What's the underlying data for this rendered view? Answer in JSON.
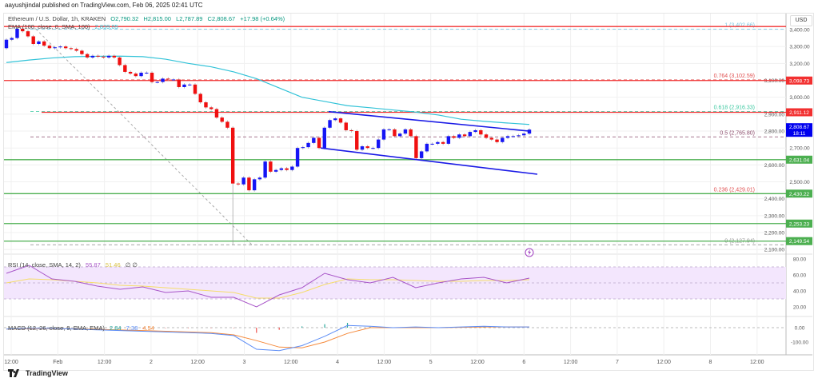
{
  "header": {
    "published": "aayushjindal published on TradingView.com, Feb 06, 2025 02:41 UTC",
    "symbol": "Ethereum / U.S. Dollar, 1h, KRAKEN",
    "open": "O2,790.32",
    "high": "H2,815.00",
    "low": "L2,787.89",
    "close": "C2,808.67",
    "change": "+17.98 (+0.64%)",
    "ema_label": "EMA (100, close, 0, SMA, 100)",
    "ema_value": "2,839.05"
  },
  "currency": "USD",
  "footer": {
    "brand": "TradingView"
  },
  "colors": {
    "up": "#1515f5",
    "down": "#f01010",
    "ema": "#33c3d8",
    "resistance": "#f23030",
    "support": "#4caf50",
    "channel": "#1a1ae6",
    "rsi": "#a855c8",
    "rsi_sma": "#f5dd6a",
    "macd": "#5b8cf5",
    "signal": "#f58a3c",
    "price_badge": "#0000ee"
  },
  "chart_data": {
    "type": "candlestick",
    "title": "Ethereum / U.S. Dollar, 1h, KRAKEN",
    "ylim": [
      2050,
      3450
    ],
    "y_ticks": [
      "3,400.00",
      "3,300.00",
      "3,200.00",
      "3,100.00",
      "3,000.00",
      "2,900.00",
      "2,800.00",
      "2,700.00",
      "2,600.00",
      "2,500.00",
      "2,400.00",
      "2,300.00",
      "2,200.00",
      "2,100.00"
    ],
    "x_ticks": [
      "12:00",
      "Feb",
      "12:00",
      "2",
      "12:00",
      "3",
      "12:00",
      "4",
      "12:00",
      "5",
      "12:00",
      "6",
      "12:00",
      "7",
      "12:00",
      "8",
      "12:00"
    ],
    "open_first": 3290,
    "closes": [
      3340,
      3350,
      3405,
      3390,
      3360,
      3315,
      3330,
      3305,
      3290,
      3295,
      3300,
      3290,
      3285,
      3275,
      3255,
      3235,
      3245,
      3240,
      3235,
      3245,
      3235,
      3190,
      3150,
      3140,
      3125,
      3145,
      3145,
      3090,
      3090,
      3110,
      3105,
      3105,
      3060,
      3075,
      3075,
      3020,
      2970,
      2940,
      2930,
      2880,
      2855,
      2820,
      2490,
      2485,
      2525,
      2450,
      2515,
      2525,
      2620,
      2560,
      2570,
      2580,
      2570,
      2590,
      2700,
      2705,
      2730,
      2760,
      2700,
      2820,
      2865,
      2875,
      2850,
      2805,
      2800,
      2690,
      2710,
      2700,
      2700,
      2750,
      2810,
      2810,
      2770,
      2785,
      2810,
      2770,
      2640,
      2680,
      2725,
      2725,
      2735,
      2725,
      2770,
      2760,
      2780,
      2770,
      2795,
      2805,
      2780,
      2760,
      2750,
      2735,
      2760,
      2770,
      2770,
      2775,
      2785,
      2808.67
    ],
    "ema100": [
      3205,
      3220,
      3232,
      3240,
      3242,
      3243,
      3240,
      3225,
      3200,
      3180,
      3150,
      3110,
      3055,
      3000,
      2975,
      2950,
      2938,
      2925,
      2912,
      2895,
      2870,
      2858,
      2848,
      2839.05
    ],
    "horizontal_levels": [
      {
        "value": 3418,
        "color": "resistance",
        "badge": ""
      },
      {
        "value": 3098.73,
        "color": "resistance",
        "badge": "3,098.73"
      },
      {
        "value": 2911.12,
        "color": "resistance",
        "badge": "2,911.12"
      },
      {
        "value": 2631.04,
        "color": "support",
        "badge": "2,631.04"
      },
      {
        "value": 2430.22,
        "color": "support",
        "badge": "2,430.22"
      },
      {
        "value": 2253.23,
        "color": "support",
        "badge": "2,253.23"
      },
      {
        "value": 2149.54,
        "color": "support",
        "badge": "2,149.54"
      }
    ],
    "fib_levels": [
      {
        "label": "1 (3,402.66)",
        "value": 3402.66,
        "color": "#7ec8e3"
      },
      {
        "label": "0.764 (3,102.59)",
        "value": 3102.59,
        "color": "#e05050"
      },
      {
        "label": "0.618 (2,916.33)",
        "value": 2916.33,
        "color": "#3cc8a0"
      },
      {
        "label": "0.5 (2,765.80)",
        "value": 2765.8,
        "color": "#8a4a6a"
      },
      {
        "label": "0.236 (2,429.01)",
        "value": 2429.01,
        "color": "#e05050"
      },
      {
        "label": "0 (2,127.94)",
        "value": 2127.94,
        "color": "#999999"
      }
    ],
    "last_price": {
      "value": 2808.67,
      "label": "2,808.67",
      "countdown": "18:11"
    },
    "channel": {
      "upper": [
        2915,
        2800
      ],
      "lower": [
        2700,
        2545
      ]
    },
    "rsi": {
      "label": "RSI (14, close, SMA, 14, 2)",
      "value": "55.87",
      "sma_value": "51.46",
      "extra": "∅ ∅",
      "ticks": [
        "80.00",
        "60.00",
        "40.00",
        "20.00"
      ],
      "values": [
        62,
        72,
        55,
        52,
        46,
        42,
        45,
        38,
        40,
        32,
        32,
        20,
        35,
        44,
        62,
        54,
        50,
        57,
        44,
        50,
        55,
        57,
        50,
        56
      ],
      "sma": [
        50,
        55,
        54,
        52,
        50,
        47,
        46,
        44,
        42,
        40,
        38,
        31,
        31,
        38,
        48,
        55,
        54,
        54,
        53,
        52,
        52,
        53,
        53,
        54
      ]
    },
    "macd": {
      "label": "MACD (12, 26, close, 9, EMA, EMA)",
      "hist_value": "2.84",
      "macd_value": "7.38",
      "signal_value": "4.54",
      "ticks": [
        "0.00",
        "-100.00"
      ],
      "macd": [
        -10,
        -5,
        -5,
        -10,
        -15,
        -20,
        -25,
        -30,
        -35,
        -40,
        -55,
        -150,
        -160,
        -125,
        -60,
        15,
        10,
        0,
        5,
        0,
        5,
        10,
        5,
        5
      ],
      "signal": [
        -10,
        -8,
        -6,
        -8,
        -12,
        -16,
        -20,
        -25,
        -30,
        -35,
        -50,
        -90,
        -135,
        -140,
        -100,
        -40,
        0,
        0,
        0,
        0,
        2,
        5,
        5,
        5
      ]
    }
  }
}
